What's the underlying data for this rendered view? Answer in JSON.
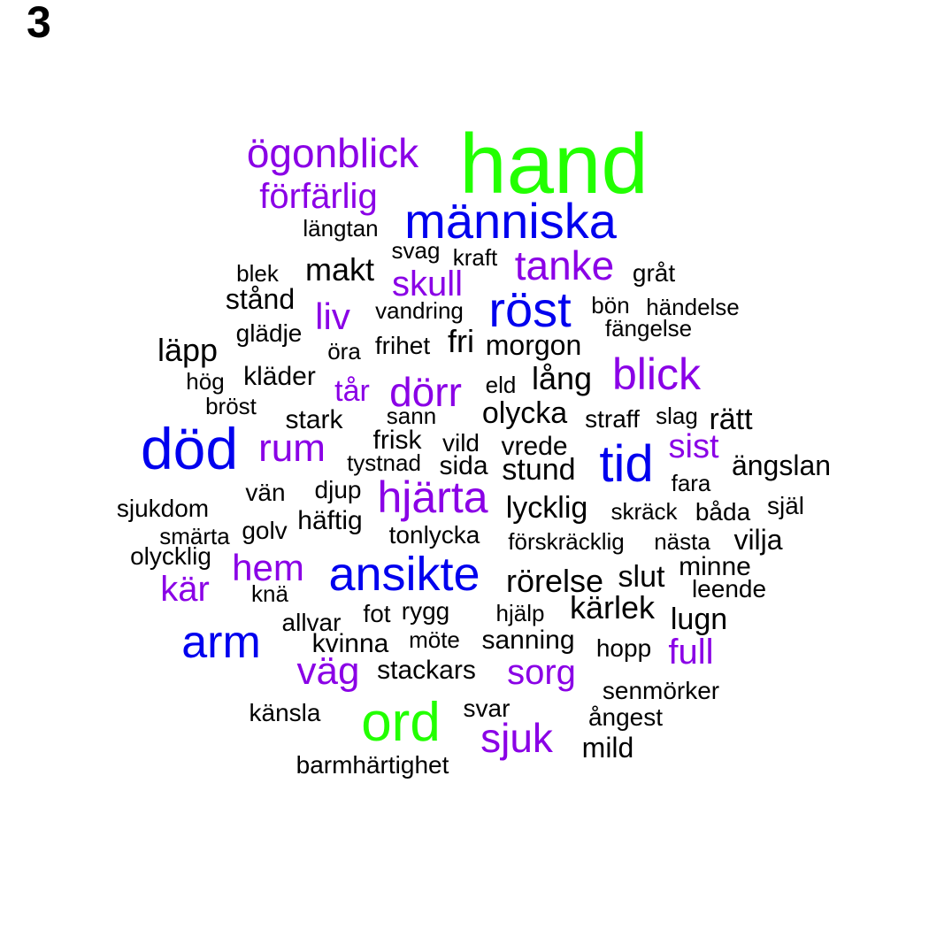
{
  "panel_label": "3",
  "palette": {
    "tier1": "#22ff00",
    "tier2": "#0000ee",
    "tier3": "#8a00e6",
    "tier4": "#000000"
  },
  "words": [
    {
      "text": "hand",
      "tier": 1
    },
    {
      "text": "ord",
      "tier": 1
    },
    {
      "text": "död",
      "tier": 2
    },
    {
      "text": "människa",
      "tier": 2
    },
    {
      "text": "ansikte",
      "tier": 2
    },
    {
      "text": "tid",
      "tier": 2
    },
    {
      "text": "arm",
      "tier": 2
    },
    {
      "text": "röst",
      "tier": 2
    },
    {
      "text": "blick",
      "tier": 3
    },
    {
      "text": "ögonblick",
      "tier": 3
    },
    {
      "text": "förfärlig",
      "tier": 3
    },
    {
      "text": "tanke",
      "tier": 3
    },
    {
      "text": "skull",
      "tier": 3
    },
    {
      "text": "liv",
      "tier": 3
    },
    {
      "text": "dörr",
      "tier": 3
    },
    {
      "text": "tår",
      "tier": 3
    },
    {
      "text": "rum",
      "tier": 3
    },
    {
      "text": "sist",
      "tier": 3
    },
    {
      "text": "hjärta",
      "tier": 3
    },
    {
      "text": "hem",
      "tier": 3
    },
    {
      "text": "kär",
      "tier": 3
    },
    {
      "text": "väg",
      "tier": 3
    },
    {
      "text": "sorg",
      "tier": 3
    },
    {
      "text": "full",
      "tier": 3
    },
    {
      "text": "sjuk",
      "tier": 3
    },
    {
      "text": "längtan",
      "tier": 4
    },
    {
      "text": "svag",
      "tier": 4
    },
    {
      "text": "kraft",
      "tier": 4
    },
    {
      "text": "makt",
      "tier": 4
    },
    {
      "text": "blek",
      "tier": 4
    },
    {
      "text": "gråt",
      "tier": 4
    },
    {
      "text": "stånd",
      "tier": 4
    },
    {
      "text": "vandring",
      "tier": 4
    },
    {
      "text": "bön",
      "tier": 4
    },
    {
      "text": "händelse",
      "tier": 4
    },
    {
      "text": "glädje",
      "tier": 4
    },
    {
      "text": "fängelse",
      "tier": 4
    },
    {
      "text": "fri",
      "tier": 4
    },
    {
      "text": "läpp",
      "tier": 4
    },
    {
      "text": "öra",
      "tier": 4
    },
    {
      "text": "frihet",
      "tier": 4
    },
    {
      "text": "morgon",
      "tier": 4
    },
    {
      "text": "lång",
      "tier": 4
    },
    {
      "text": "hög",
      "tier": 4
    },
    {
      "text": "kläder",
      "tier": 4
    },
    {
      "text": "eld",
      "tier": 4
    },
    {
      "text": "bröst",
      "tier": 4
    },
    {
      "text": "olycka",
      "tier": 4
    },
    {
      "text": "stark",
      "tier": 4
    },
    {
      "text": "sann",
      "tier": 4
    },
    {
      "text": "straff",
      "tier": 4
    },
    {
      "text": "slag",
      "tier": 4
    },
    {
      "text": "rätt",
      "tier": 4
    },
    {
      "text": "frisk",
      "tier": 4
    },
    {
      "text": "vild",
      "tier": 4
    },
    {
      "text": "vrede",
      "tier": 4
    },
    {
      "text": "tystnad",
      "tier": 4
    },
    {
      "text": "sida",
      "tier": 4
    },
    {
      "text": "stund",
      "tier": 4
    },
    {
      "text": "ängslan",
      "tier": 4
    },
    {
      "text": "fara",
      "tier": 4
    },
    {
      "text": "djup",
      "tier": 4
    },
    {
      "text": "vän",
      "tier": 4
    },
    {
      "text": "sjukdom",
      "tier": 4
    },
    {
      "text": "lycklig",
      "tier": 4
    },
    {
      "text": "själ",
      "tier": 4
    },
    {
      "text": "skräck",
      "tier": 4
    },
    {
      "text": "båda",
      "tier": 4
    },
    {
      "text": "häftig",
      "tier": 4
    },
    {
      "text": "golv",
      "tier": 4
    },
    {
      "text": "smärta",
      "tier": 4
    },
    {
      "text": "tonlycka",
      "tier": 4
    },
    {
      "text": "vilja",
      "tier": 4
    },
    {
      "text": "förskräcklig",
      "tier": 4
    },
    {
      "text": "nästa",
      "tier": 4
    },
    {
      "text": "olycklig",
      "tier": 4
    },
    {
      "text": "minne",
      "tier": 4
    },
    {
      "text": "rörelse",
      "tier": 4
    },
    {
      "text": "slut",
      "tier": 4
    },
    {
      "text": "leende",
      "tier": 4
    },
    {
      "text": "knä",
      "tier": 4
    },
    {
      "text": "kärlek",
      "tier": 4
    },
    {
      "text": "rygg",
      "tier": 4
    },
    {
      "text": "fot",
      "tier": 4
    },
    {
      "text": "hjälp",
      "tier": 4
    },
    {
      "text": "allvar",
      "tier": 4
    },
    {
      "text": "lugn",
      "tier": 4
    },
    {
      "text": "möte",
      "tier": 4
    },
    {
      "text": "kvinna",
      "tier": 4
    },
    {
      "text": "sanning",
      "tier": 4
    },
    {
      "text": "hopp",
      "tier": 4
    },
    {
      "text": "stackars",
      "tier": 4
    },
    {
      "text": "senmörker",
      "tier": 4
    },
    {
      "text": "svar",
      "tier": 4
    },
    {
      "text": "känsla",
      "tier": 4
    },
    {
      "text": "ångest",
      "tier": 4
    },
    {
      "text": "mild",
      "tier": 4
    },
    {
      "text": "barmhärtighet",
      "tier": 4
    }
  ]
}
